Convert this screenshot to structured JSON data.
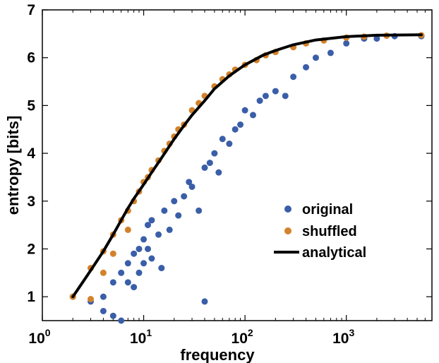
{
  "chart_data": {
    "type": "scatter",
    "x_scale": "log",
    "xlim": [
      1,
      7000
    ],
    "ylim": [
      0.5,
      7
    ],
    "xlabel": "frequency",
    "ylabel": "entropy [bits]",
    "x_ticks": [
      {
        "value": 1,
        "base": "10",
        "exp": "0"
      },
      {
        "value": 10,
        "base": "10",
        "exp": "1"
      },
      {
        "value": 100,
        "base": "10",
        "exp": "2"
      },
      {
        "value": 1000,
        "base": "10",
        "exp": "3"
      }
    ],
    "y_ticks": [
      1,
      2,
      3,
      4,
      5,
      6,
      7
    ],
    "legend_position": "center-right",
    "series": [
      {
        "name": "original",
        "type": "scatter",
        "color": "#3a5ea8"
      },
      {
        "name": "shuffled",
        "type": "scatter",
        "color": "#d2822a"
      },
      {
        "name": "analytical",
        "type": "line",
        "color": "#000000"
      }
    ],
    "original_points": [
      [
        2,
        1.0
      ],
      [
        3,
        0.9
      ],
      [
        4,
        0.7
      ],
      [
        4,
        1.0
      ],
      [
        5,
        0.6
      ],
      [
        6,
        0.5
      ],
      [
        5,
        1.3
      ],
      [
        6,
        1.5
      ],
      [
        7,
        1.3
      ],
      [
        7,
        1.7
      ],
      [
        8,
        1.2
      ],
      [
        8,
        1.9
      ],
      [
        9,
        1.5
      ],
      [
        9,
        2.0
      ],
      [
        10,
        1.7
      ],
      [
        10,
        2.2
      ],
      [
        11,
        2.0
      ],
      [
        11,
        2.5
      ],
      [
        12,
        1.8
      ],
      [
        12,
        2.6
      ],
      [
        14,
        2.3
      ],
      [
        15,
        1.6
      ],
      [
        16,
        2.8
      ],
      [
        18,
        2.4
      ],
      [
        20,
        3.0
      ],
      [
        22,
        2.7
      ],
      [
        25,
        3.1
      ],
      [
        28,
        3.4
      ],
      [
        30,
        3.3
      ],
      [
        35,
        2.8
      ],
      [
        40,
        3.7
      ],
      [
        40,
        0.9
      ],
      [
        45,
        3.8
      ],
      [
        50,
        4.0
      ],
      [
        55,
        3.6
      ],
      [
        60,
        4.3
      ],
      [
        70,
        4.2
      ],
      [
        80,
        4.5
      ],
      [
        90,
        4.6
      ],
      [
        100,
        4.9
      ],
      [
        120,
        4.8
      ],
      [
        140,
        5.1
      ],
      [
        160,
        5.2
      ],
      [
        200,
        5.3
      ],
      [
        250,
        5.2
      ],
      [
        300,
        5.6
      ],
      [
        400,
        5.8
      ],
      [
        500,
        6.0
      ],
      [
        700,
        6.1
      ],
      [
        1000,
        6.3
      ],
      [
        1500,
        6.4
      ],
      [
        2000,
        6.4
      ],
      [
        3000,
        6.45
      ],
      [
        5500,
        6.45
      ]
    ],
    "shuffled_points": [
      [
        2,
        1.0
      ],
      [
        3,
        1.6
      ],
      [
        3,
        0.95
      ],
      [
        4,
        1.95
      ],
      [
        4,
        1.5
      ],
      [
        5,
        2.3
      ],
      [
        5,
        1.9
      ],
      [
        6,
        2.6
      ],
      [
        7,
        2.8
      ],
      [
        7,
        2.4
      ],
      [
        8,
        3.0
      ],
      [
        9,
        3.2
      ],
      [
        10,
        3.4
      ],
      [
        11,
        3.5
      ],
      [
        12,
        3.65
      ],
      [
        14,
        3.85
      ],
      [
        16,
        4.05
      ],
      [
        18,
        4.2
      ],
      [
        20,
        4.35
      ],
      [
        22,
        4.5
      ],
      [
        25,
        4.6
      ],
      [
        30,
        4.9
      ],
      [
        35,
        5.05
      ],
      [
        40,
        5.2
      ],
      [
        50,
        5.4
      ],
      [
        60,
        5.55
      ],
      [
        70,
        5.65
      ],
      [
        80,
        5.75
      ],
      [
        100,
        5.85
      ],
      [
        130,
        5.95
      ],
      [
        160,
        6.05
      ],
      [
        200,
        6.12
      ],
      [
        300,
        6.22
      ],
      [
        400,
        6.3
      ],
      [
        600,
        6.36
      ],
      [
        1000,
        6.42
      ],
      [
        1500,
        6.44
      ],
      [
        2500,
        6.46
      ],
      [
        5500,
        6.47
      ]
    ],
    "analytical_line": [
      [
        2,
        1.0
      ],
      [
        3,
        1.55
      ],
      [
        4,
        1.95
      ],
      [
        5,
        2.3
      ],
      [
        6,
        2.6
      ],
      [
        7,
        2.85
      ],
      [
        8,
        3.05
      ],
      [
        10,
        3.35
      ],
      [
        12,
        3.6
      ],
      [
        15,
        3.9
      ],
      [
        20,
        4.3
      ],
      [
        25,
        4.58
      ],
      [
        30,
        4.8
      ],
      [
        40,
        5.1
      ],
      [
        50,
        5.35
      ],
      [
        70,
        5.62
      ],
      [
        100,
        5.85
      ],
      [
        150,
        6.05
      ],
      [
        200,
        6.15
      ],
      [
        300,
        6.27
      ],
      [
        500,
        6.37
      ],
      [
        1000,
        6.44
      ],
      [
        2000,
        6.47
      ],
      [
        5500,
        6.48
      ]
    ]
  }
}
